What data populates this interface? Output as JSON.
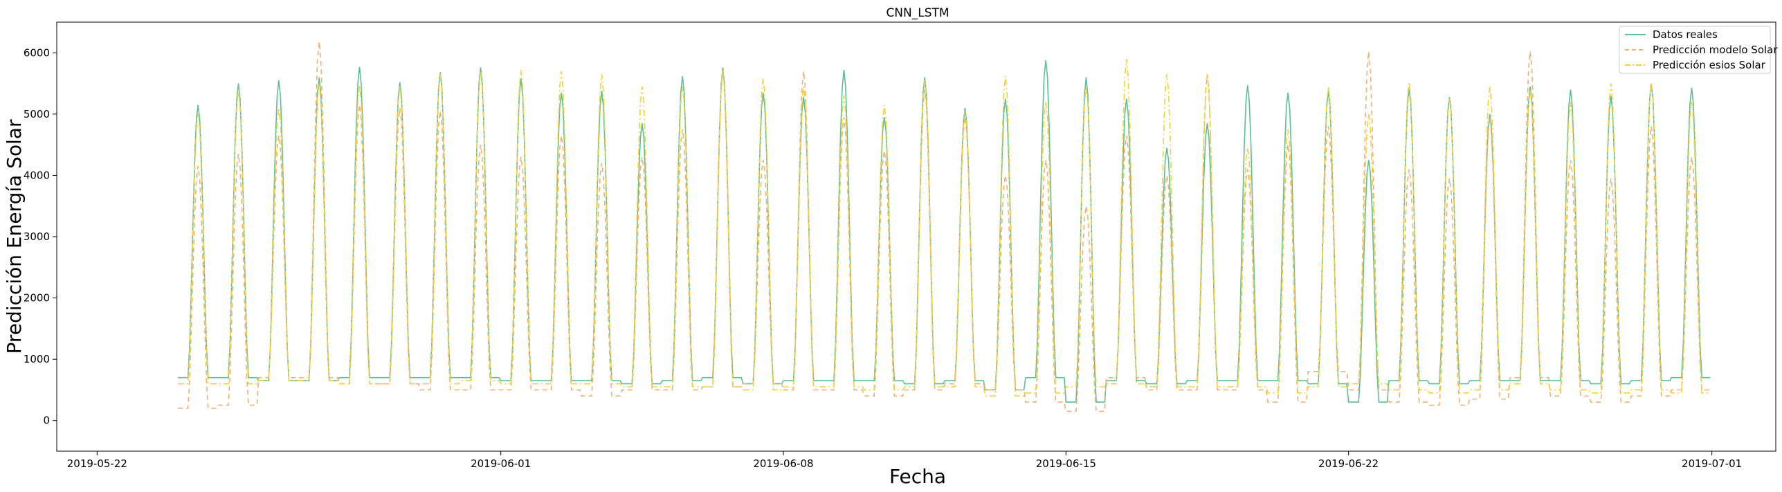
{
  "chart_data": {
    "type": "line",
    "title": "CNN_LSTM",
    "xlabel": "Fecha",
    "ylabel": "Predicción Energía Solar",
    "xlim": [
      "2019-05-21T00:00",
      "2019-07-02T14:00"
    ],
    "ylim": [
      -500,
      6500
    ],
    "x_ticks": [
      "2019-05-22",
      "2019-06-01",
      "2019-06-08",
      "2019-06-15",
      "2019-06-22",
      "2019-07-01"
    ],
    "y_ticks": [
      0,
      1000,
      2000,
      3000,
      4000,
      5000,
      6000
    ],
    "grid": false,
    "legend": "top-right",
    "x_start": "2019-05-24T00:00",
    "x_step_hours": 1,
    "series": [
      {
        "name": "Datos reales",
        "color": "#5cbf96",
        "dash": "solid",
        "daily_peaks": [
          5150,
          5500,
          5550,
          5600,
          5770,
          5520,
          5680,
          5760,
          5580,
          5350,
          5380,
          4850,
          5620,
          5760,
          5350,
          5280,
          5720,
          4950,
          5600,
          5100,
          5250,
          5880,
          5600,
          5250,
          4450,
          4850,
          5470,
          5350,
          5380,
          4250,
          5420,
          5280,
          5000,
          5450,
          5400,
          5300,
          5500,
          5430
        ],
        "daily_night": [
          700,
          700,
          650,
          650,
          700,
          700,
          700,
          700,
          650,
          650,
          650,
          600,
          650,
          700,
          600,
          650,
          650,
          650,
          600,
          650,
          500,
          700,
          300,
          650,
          600,
          650,
          650,
          650,
          600,
          300,
          650,
          600,
          650,
          650,
          650,
          600,
          650,
          700
        ]
      },
      {
        "name": "Predicción modelo Solar",
        "color": "#f0b07a",
        "dash": "dashed",
        "daily_peaks": [
          4150,
          4350,
          4650,
          6180,
          5150,
          5100,
          5050,
          4500,
          4300,
          4650,
          4200,
          4300,
          4750,
          5700,
          4250,
          5700,
          4950,
          4400,
          5400,
          4950,
          4000,
          4250,
          3500,
          4650,
          4000,
          5650,
          4100,
          4500,
          4800,
          6020,
          4100,
          3950,
          4950,
          6020,
          4250,
          3950,
          4800,
          4300
        ],
        "daily_night": [
          200,
          250,
          700,
          700,
          600,
          600,
          500,
          500,
          500,
          500,
          400,
          500,
          500,
          550,
          600,
          500,
          500,
          400,
          500,
          600,
          500,
          300,
          150,
          700,
          500,
          500,
          500,
          300,
          800,
          500,
          300,
          250,
          350,
          700,
          400,
          300,
          400,
          500
        ]
      },
      {
        "name": "Predicción esios Solar",
        "color": "#f8d030",
        "dash": "dashdot",
        "daily_peaks": [
          5000,
          5400,
          5100,
          5500,
          5470,
          5450,
          5650,
          5700,
          5720,
          5700,
          5650,
          5450,
          5450,
          5720,
          5580,
          5450,
          5300,
          5150,
          5550,
          5050,
          5620,
          5200,
          5450,
          5900,
          5650,
          5650,
          4450,
          4750,
          5450,
          5000,
          5520,
          5250,
          5450,
          5400,
          5200,
          5500,
          5520,
          5200
        ],
        "daily_night": [
          600,
          600,
          650,
          650,
          600,
          600,
          600,
          650,
          600,
          600,
          600,
          550,
          550,
          550,
          500,
          550,
          550,
          500,
          550,
          550,
          400,
          450,
          550,
          600,
          550,
          550,
          550,
          450,
          550,
          600,
          500,
          450,
          500,
          600,
          500,
          450,
          500,
          450
        ]
      }
    ]
  }
}
